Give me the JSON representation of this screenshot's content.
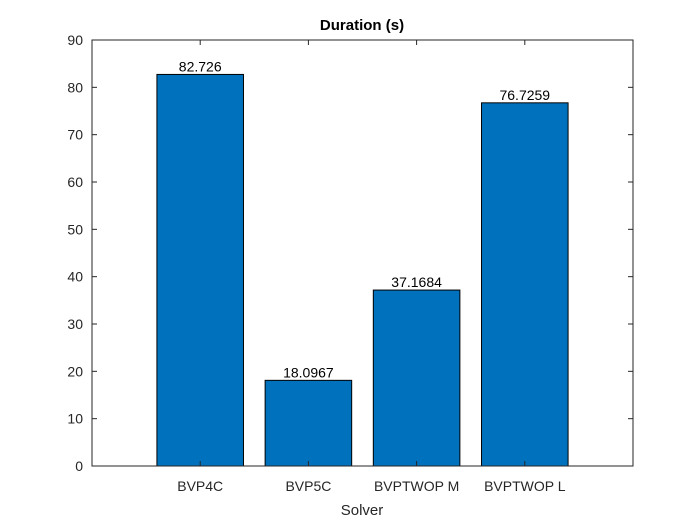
{
  "chart_data": {
    "type": "bar",
    "title": "Duration (s)",
    "xlabel": "Solver",
    "ylabel": "",
    "categories": [
      "BVP4C",
      "BVP5C",
      "BVPTWOP M",
      "BVPTWOP L"
    ],
    "values": [
      82.726,
      18.0967,
      37.1684,
      76.7259
    ],
    "value_labels": [
      "82.726",
      "18.0967",
      "37.1684",
      "76.7259"
    ],
    "ylim": [
      0,
      90
    ],
    "yticks": [
      0,
      10,
      20,
      30,
      40,
      50,
      60,
      70,
      80,
      90
    ],
    "bar_color": "#0072BD",
    "bar_edge_color": "#000000",
    "axis_color": "#262626",
    "grid": false,
    "box": true
  }
}
